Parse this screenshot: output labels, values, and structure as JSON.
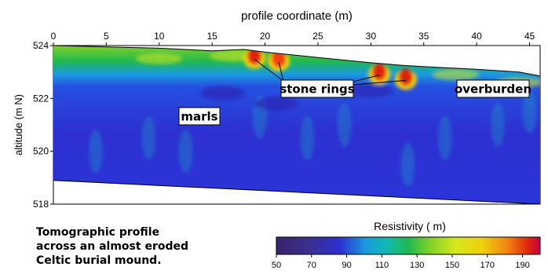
{
  "chart_data": [
    {
      "type": "heatmap",
      "title": "",
      "xlabel": "profile coordinate (m)",
      "ylabel": "altitude (m N)",
      "xlim": [
        0,
        46
      ],
      "ylim": [
        518,
        524
      ],
      "xticks": [
        "0",
        "5",
        "10",
        "15",
        "20",
        "25",
        "30",
        "35",
        "40",
        "45"
      ],
      "yticks": [
        "518",
        "520",
        "522",
        "524"
      ],
      "grid": false,
      "value_name": "Resistivity",
      "value_range": [
        50,
        200
      ],
      "surface_topography": {
        "x": [
          0,
          5,
          10,
          15,
          18,
          20,
          25,
          30,
          33,
          35,
          40,
          44,
          46
        ],
        "altitude": [
          524.0,
          523.95,
          523.9,
          523.8,
          523.85,
          523.75,
          523.55,
          523.35,
          523.25,
          523.2,
          523.1,
          523.0,
          522.85
        ]
      },
      "bottom_boundary": {
        "x": [
          0,
          46
        ],
        "altitude": [
          518.9,
          518.0
        ]
      },
      "high_resistivity_anomalies": [
        {
          "x": 19.0,
          "altitude": 523.6,
          "value": 195
        },
        {
          "x": 21.3,
          "altitude": 523.5,
          "value": 185
        },
        {
          "x": 30.8,
          "altitude": 523.0,
          "value": 190
        },
        {
          "x": 33.3,
          "altitude": 522.8,
          "value": 195
        }
      ],
      "annotations": [
        {
          "text": "stone rings"
        },
        {
          "text": "overburden"
        },
        {
          "text": "marls"
        }
      ]
    },
    {
      "type": "colorbar",
      "title": "Resistivity (   m)",
      "range": [
        50,
        200
      ],
      "ticks": [
        "50",
        "70",
        "90",
        "110",
        "130",
        "150",
        "170",
        "190"
      ]
    }
  ],
  "caption": {
    "lines": [
      "Tomographic profile",
      "across an almost eroded",
      "Celtic burial mound."
    ]
  },
  "colors": {
    "scale": [
      "#2b1a5e",
      "#3b2f8f",
      "#2e2fd0",
      "#2550e0",
      "#1a9be0",
      "#12b8b0",
      "#20b850",
      "#7fcf2a",
      "#d4e81c",
      "#f0d010",
      "#f08010",
      "#e02010",
      "#c0004a"
    ]
  }
}
